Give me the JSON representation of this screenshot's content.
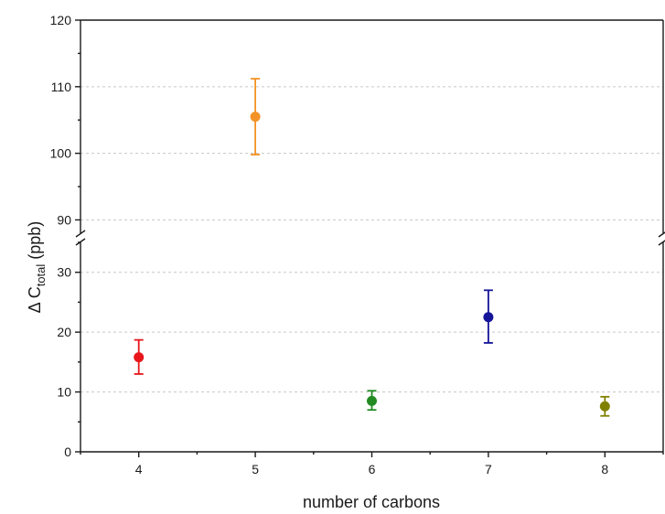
{
  "chart_data": {
    "type": "scatter",
    "title": "",
    "xlabel": "number of carbons",
    "ylabel": {
      "prefix": "Δ C",
      "subscript": "total",
      "suffix": " (ppb)"
    },
    "x_ticks": [
      "4",
      "5",
      "6",
      "7",
      "8"
    ],
    "xlim": [
      3.5,
      8.5
    ],
    "y_axis": {
      "broken": true,
      "lower_segment": {
        "ylim": [
          0,
          35
        ],
        "ticks": [
          "0",
          "10",
          "20",
          "30"
        ]
      },
      "upper_segment": {
        "ylim": [
          88,
          120
        ],
        "ticks": [
          "90",
          "100",
          "110",
          "120"
        ]
      }
    },
    "grid": true,
    "points": [
      {
        "x": 4,
        "y": 15.8,
        "err_low": 13.0,
        "err_high": 18.7,
        "color": "#e8161b"
      },
      {
        "x": 5,
        "y": 105.5,
        "err_low": 99.8,
        "err_high": 111.2,
        "color": "#f39226"
      },
      {
        "x": 6,
        "y": 8.5,
        "err_low": 7.0,
        "err_high": 10.2,
        "color": "#228b22"
      },
      {
        "x": 7,
        "y": 22.5,
        "err_low": 18.2,
        "err_high": 27.0,
        "color": "#15159a"
      },
      {
        "x": 8,
        "y": 7.6,
        "err_low": 6.0,
        "err_high": 9.2,
        "color": "#808000"
      }
    ]
  }
}
